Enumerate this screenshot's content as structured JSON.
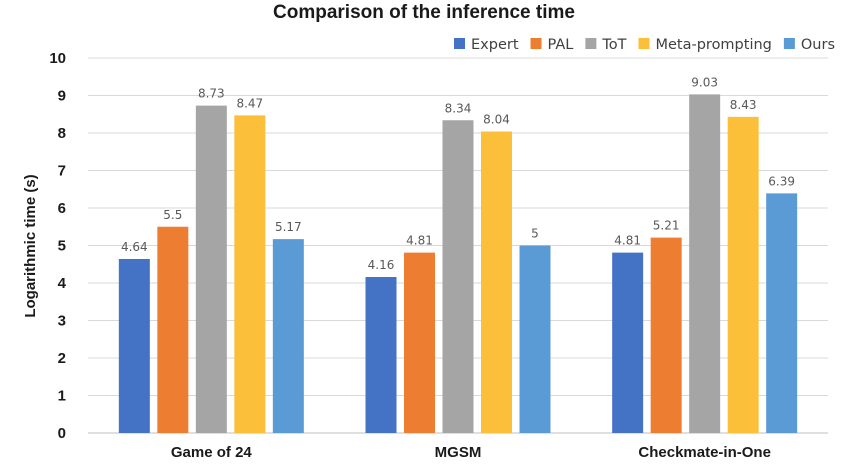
{
  "chart_data": {
    "type": "bar",
    "title": "Comparison of the inference time",
    "xlabel": "",
    "ylabel": "Logarithmic time (s)",
    "ylim": [
      0,
      10
    ],
    "yticks": [
      "0",
      "1",
      "2",
      "3",
      "4",
      "5",
      "6",
      "7",
      "8",
      "9",
      "10"
    ],
    "categories": [
      "Game of 24",
      "MGSM",
      "Checkmate-in-One"
    ],
    "series": [
      {
        "name": "Expert",
        "color": "#4472c4",
        "values": [
          4.64,
          4.16,
          4.81
        ],
        "labels": [
          "4.64",
          "4.16",
          "4.81"
        ]
      },
      {
        "name": "PAL",
        "color": "#ed7d31",
        "values": [
          5.5,
          4.81,
          5.21
        ],
        "labels": [
          "5.5",
          "4.81",
          "5.21"
        ]
      },
      {
        "name": "ToT",
        "color": "#a5a5a5",
        "values": [
          8.73,
          8.34,
          9.03
        ],
        "labels": [
          "8.73",
          "8.34",
          "9.03"
        ]
      },
      {
        "name": "Meta-prompting",
        "color": "#fbbf3a",
        "values": [
          8.47,
          8.04,
          8.43
        ],
        "labels": [
          "8.47",
          "8.04",
          "8.43"
        ]
      },
      {
        "name": "Ours",
        "color": "#5b9bd5",
        "values": [
          5.17,
          5,
          6.39
        ],
        "labels": [
          "5.17",
          "5",
          "6.39"
        ]
      }
    ],
    "grid": true,
    "legend": "top-right"
  }
}
